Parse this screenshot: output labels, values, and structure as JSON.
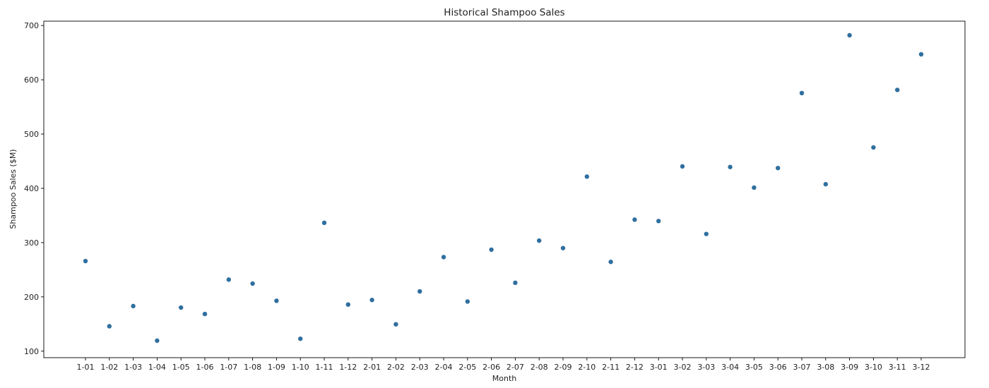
{
  "chart_data": {
    "type": "scatter",
    "title": "Historical Shampoo Sales",
    "xlabel": "Month",
    "ylabel": "Shampoo Sales ($M)",
    "categories": [
      "1-01",
      "1-02",
      "1-03",
      "1-04",
      "1-05",
      "1-06",
      "1-07",
      "1-08",
      "1-09",
      "1-10",
      "1-11",
      "1-12",
      "2-01",
      "2-02",
      "2-03",
      "2-04",
      "2-05",
      "2-06",
      "2-07",
      "2-08",
      "2-09",
      "2-10",
      "2-11",
      "2-12",
      "3-01",
      "3-02",
      "3-03",
      "3-04",
      "3-05",
      "3-06",
      "3-07",
      "3-08",
      "3-09",
      "3-10",
      "3-11",
      "3-12"
    ],
    "values": [
      266.0,
      145.9,
      183.1,
      119.3,
      180.3,
      168.5,
      231.8,
      224.5,
      192.8,
      122.9,
      336.5,
      185.9,
      194.3,
      149.5,
      210.1,
      273.3,
      191.4,
      287.0,
      226.0,
      303.6,
      289.9,
      421.6,
      264.5,
      342.3,
      339.7,
      440.4,
      315.9,
      439.3,
      401.3,
      437.4,
      575.5,
      407.6,
      682.0,
      475.3,
      581.3,
      646.9
    ],
    "ylim": [
      88,
      708
    ],
    "yticks": [
      100,
      200,
      300,
      400,
      500,
      600,
      700
    ],
    "grid": false,
    "marker_color": "#2f6f9f"
  }
}
